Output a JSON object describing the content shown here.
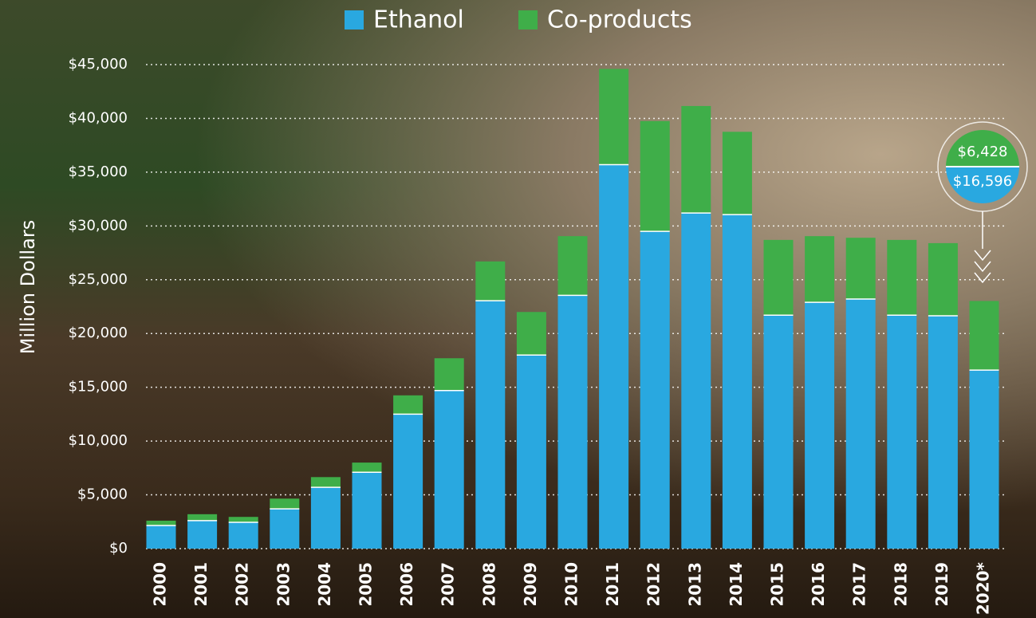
{
  "chart_data": {
    "type": "stacked-bar",
    "y_label": "Million Dollars",
    "categories": [
      "2000",
      "2001",
      "2002",
      "2003",
      "2004",
      "2005",
      "2006",
      "2007",
      "2008",
      "2009",
      "2010",
      "2011",
      "2012",
      "2013",
      "2014",
      "2015",
      "2016",
      "2017",
      "2018",
      "2019",
      "2020*"
    ],
    "series": [
      {
        "name": "Ethanol",
        "color": "#29a8e0",
        "values": [
          2150,
          2600,
          2450,
          3700,
          5700,
          7100,
          12500,
          14700,
          23050,
          18000,
          23550,
          35700,
          29500,
          31200,
          31050,
          21700,
          22900,
          23200,
          21700,
          21650,
          16596
        ],
        "value_labels": [
          null,
          null,
          null,
          null,
          null,
          null,
          null,
          null,
          null,
          null,
          null,
          null,
          null,
          null,
          null,
          null,
          null,
          null,
          null,
          null,
          "$16,596"
        ]
      },
      {
        "name": "Co-products",
        "color": "#3fae49",
        "values": [
          450,
          600,
          500,
          950,
          950,
          900,
          1750,
          3000,
          3650,
          4000,
          5500,
          8900,
          10250,
          9950,
          7700,
          7000,
          6150,
          5700,
          7000,
          6750,
          6428
        ],
        "value_labels": [
          null,
          null,
          null,
          null,
          null,
          null,
          null,
          null,
          null,
          null,
          null,
          null,
          null,
          null,
          null,
          null,
          null,
          null,
          null,
          null,
          "$6,428"
        ]
      }
    ],
    "ylim": [
      0,
      45000
    ],
    "yticks": [
      {
        "value": 0,
        "label": "$0"
      },
      {
        "value": 5000,
        "label": "$5,000"
      },
      {
        "value": 10000,
        "label": "$10,000"
      },
      {
        "value": 15000,
        "label": "$15,000"
      },
      {
        "value": 20000,
        "label": "$20,000"
      },
      {
        "value": 25000,
        "label": "$25,000"
      },
      {
        "value": 30000,
        "label": "$30,000"
      },
      {
        "value": 35000,
        "label": "$35,000"
      },
      {
        "value": 40000,
        "label": "$40,000"
      },
      {
        "value": 45000,
        "label": "$45,000"
      }
    ],
    "grid": true,
    "legend": "top"
  }
}
